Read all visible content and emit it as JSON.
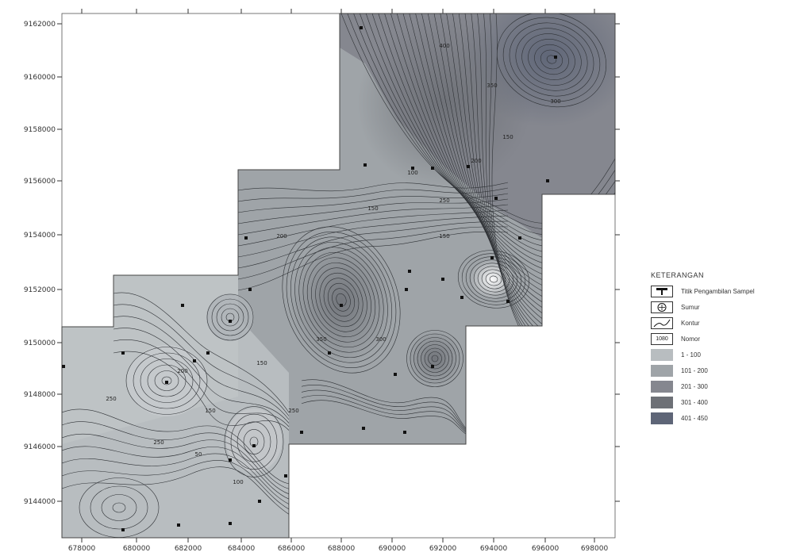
{
  "map": {
    "y_ticks": [
      "9162000",
      "9160000",
      "9158000",
      "9156000",
      "9154000",
      "9152000",
      "9150000",
      "9148000",
      "9146000",
      "9144000"
    ],
    "x_ticks": [
      "678000",
      "680000",
      "682000",
      "684000",
      "686000",
      "688000",
      "690000",
      "692000",
      "694000",
      "696000",
      "698000"
    ],
    "contour_labels": [
      "250",
      "250",
      "200",
      "150",
      "100",
      "150",
      "250",
      "50",
      "200",
      "150",
      "100",
      "150",
      "350",
      "300",
      "250",
      "200",
      "150",
      "400",
      "350",
      "300"
    ],
    "colors": {
      "class_1": "#b8bdc0",
      "class_2": "#9fa4a8",
      "class_3": "#85878f",
      "class_4": "#6d7076",
      "class_5": "#5e6577"
    }
  },
  "legend": {
    "title": "KETERANGAN",
    "items": [
      {
        "label": "Titik Pengambilan Sampel",
        "symbol": "sample-point"
      },
      {
        "label": "Sumur",
        "symbol": "well"
      },
      {
        "label": "Kontur",
        "symbol": "contour-line"
      },
      {
        "label": "Nomor",
        "symbol": "number-box",
        "symbol_text": "1080"
      },
      {
        "label": "1 - 100",
        "symbol": "class-1"
      },
      {
        "label": "101 - 200",
        "symbol": "class-2"
      },
      {
        "label": "201 - 300",
        "symbol": "class-3"
      },
      {
        "label": "301 - 400",
        "symbol": "class-4"
      },
      {
        "label": "401 - 450",
        "symbol": "class-5"
      }
    ]
  }
}
